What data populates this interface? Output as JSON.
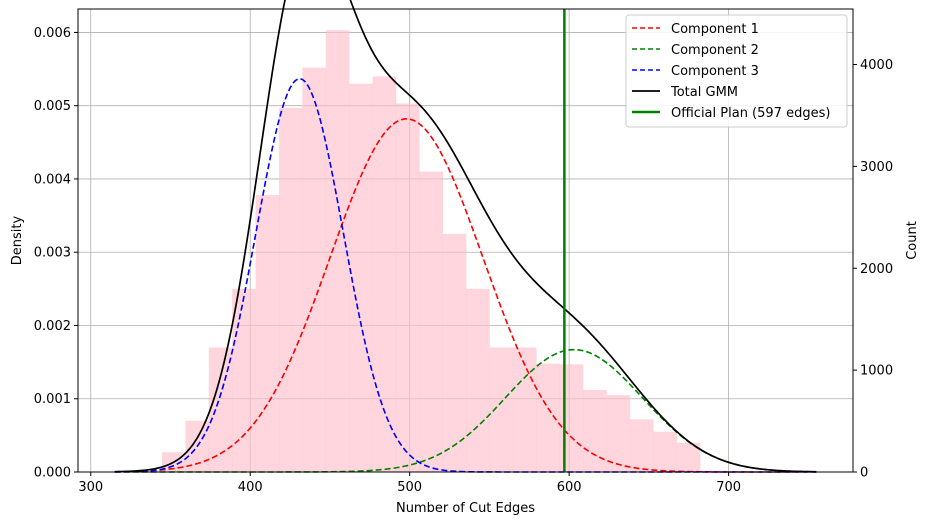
{
  "chart_data": {
    "type": "histogram-with-density",
    "xlabel": "Number of Cut Edges",
    "ylabel_left": "Density",
    "ylabel_right": "Count",
    "xlim": [
      292,
      778
    ],
    "ylim_left": [
      0,
      0.00632
    ],
    "ylim_right": [
      0,
      4545
    ],
    "x_ticks": [
      300,
      400,
      500,
      600,
      700
    ],
    "y_ticks_left": [
      "0.000",
      "0.001",
      "0.002",
      "0.003",
      "0.004",
      "0.005",
      "0.006"
    ],
    "y_ticks_right": [
      0,
      1000,
      2000,
      3000,
      4000
    ],
    "grid": true,
    "legend_position": "top-right",
    "histogram": {
      "color": "#ffc0cb",
      "opacity": 0.65,
      "bin_width": 14.67,
      "bin_edges_start": 330,
      "densities": [
        3e-05,
        0.00027,
        0.0007,
        0.0017,
        0.0025,
        0.00378,
        0.00497,
        0.00552,
        0.00603,
        0.0053,
        0.0054,
        0.00503,
        0.0041,
        0.00325,
        0.0025,
        0.0017,
        0.0017,
        0.00148,
        0.00147,
        0.00112,
        0.00105,
        0.00072,
        0.00055,
        0.0004,
        2e-05
      ]
    },
    "components": [
      {
        "name": "Component 1",
        "color": "#ff0000",
        "weight": 0.58,
        "mean": 498,
        "sd": 48
      },
      {
        "name": "Component 2",
        "color": "#008000",
        "weight": 0.18,
        "mean": 603,
        "sd": 43
      },
      {
        "name": "Component 3",
        "color": "#0000ff",
        "weight": 0.37,
        "mean": 431,
        "sd": 27.5
      }
    ],
    "total": {
      "name": "Total GMM",
      "color": "#000000"
    },
    "vline": {
      "name": "Official Plan (597 edges)",
      "x": 597,
      "color": "#008000"
    },
    "x_range_curves": [
      315,
      755
    ]
  }
}
